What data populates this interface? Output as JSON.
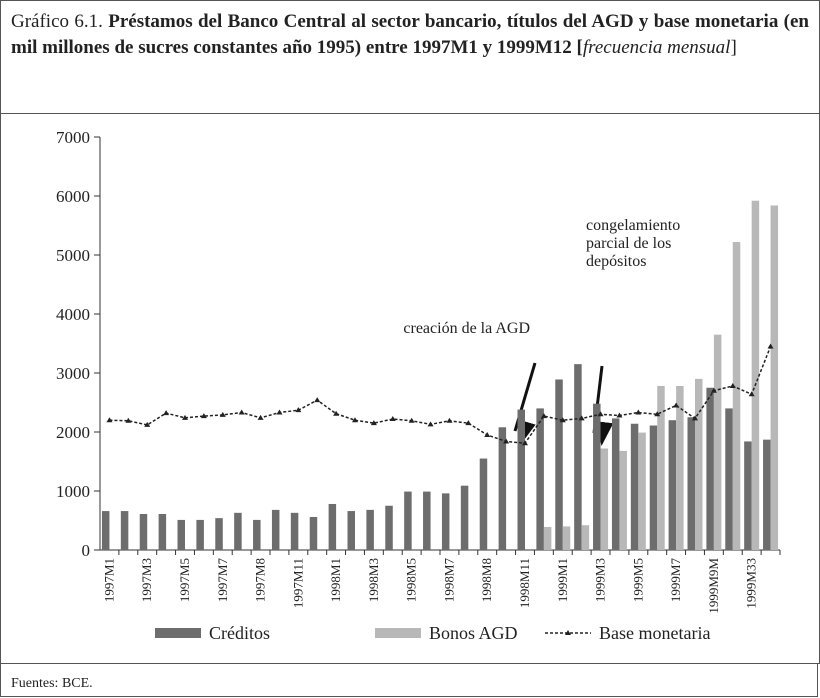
{
  "chart_data": {
    "type": "bar",
    "figure_label": "Gráfico 6.1.",
    "title": "Préstamos del Banco Central al sector bancario, títulos del AGD y base monetaria (en mil millones de sucres constantes año 1995) entre 1997M1 y 1999M12 [",
    "title_italic": "frecuencia mensual",
    "title_end": "]",
    "categories": [
      "1997M1",
      null,
      "1997M3",
      null,
      "1997M5",
      null,
      "1997M7",
      null,
      "1997M8",
      null,
      "1997M11",
      null,
      "1998M1",
      null,
      "1998M3",
      null,
      "1998M5",
      null,
      "1998M7",
      null,
      "1998M8",
      null,
      "1998M11",
      null,
      "1999M1",
      null,
      "1999M3",
      null,
      "1999M5",
      null,
      "1999M7",
      null,
      "1999M9M",
      null,
      "1999M33",
      null
    ],
    "series": [
      {
        "name": "Créditos",
        "type": "bar",
        "color": "#6d6d6d",
        "values": [
          660,
          660,
          610,
          610,
          510,
          510,
          540,
          630,
          510,
          680,
          630,
          560,
          780,
          660,
          680,
          750,
          990,
          990,
          960,
          1090,
          1550,
          2080,
          2380,
          2400,
          2890,
          3150,
          2480,
          2230,
          2140,
          2110,
          2200,
          2250,
          2750,
          2400,
          1840,
          1870
        ]
      },
      {
        "name": "Bonos AGD",
        "type": "bar",
        "color": "#b8b8b8",
        "values": [
          null,
          null,
          null,
          null,
          null,
          null,
          null,
          null,
          null,
          null,
          null,
          null,
          null,
          null,
          null,
          null,
          null,
          null,
          null,
          null,
          null,
          null,
          null,
          390,
          400,
          420,
          1720,
          1680,
          1990,
          2780,
          2780,
          2900,
          3650,
          5220,
          5920,
          5840
        ]
      },
      {
        "name": "Base monetaria",
        "type": "line",
        "color": "#222222",
        "values": [
          2200,
          2190,
          2120,
          2320,
          2240,
          2270,
          2290,
          2330,
          2240,
          2330,
          2370,
          2540,
          2310,
          2200,
          2150,
          2220,
          2190,
          2130,
          2190,
          2150,
          1950,
          1840,
          1810,
          2270,
          2200,
          2230,
          2300,
          2280,
          2330,
          2300,
          2450,
          2230,
          2700,
          2780,
          2640,
          3450
        ]
      }
    ],
    "ylim": [
      0,
      7000
    ],
    "yticks": [
      0,
      1000,
      2000,
      3000,
      4000,
      5000,
      6000,
      7000
    ],
    "annotations": [
      {
        "text": [
          "creación de la AGD"
        ]
      },
      {
        "text": [
          "congelamiento",
          "parcial de los",
          "depósitos"
        ]
      }
    ],
    "source": "Fuentes: BCE."
  }
}
